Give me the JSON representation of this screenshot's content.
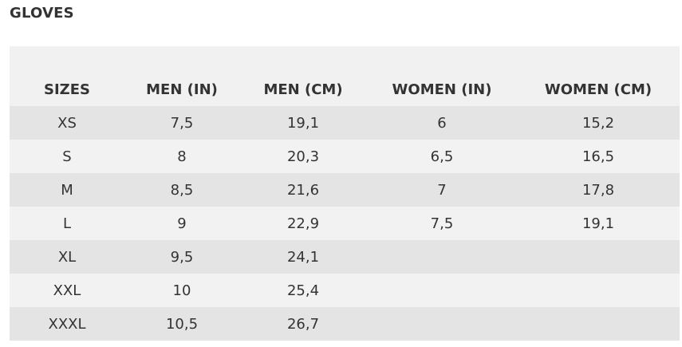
{
  "header": {
    "title": "GLOVES"
  },
  "table": {
    "columns": [
      "SIZES",
      "MEN (IN)",
      "MEN (CM)",
      "WOMEN (IN)",
      "WOMEN (CM)"
    ],
    "rows": [
      [
        "XS",
        "7,5",
        "19,1",
        "6",
        "15,2"
      ],
      [
        "S",
        "8",
        "20,3",
        "6,5",
        "16,5"
      ],
      [
        "M",
        "8,5",
        "21,6",
        "7",
        "17,8"
      ],
      [
        "L",
        "9",
        "22,9",
        "7,5",
        "19,1"
      ],
      [
        "XL",
        "9,5",
        "24,1"
      ],
      [
        "XXL",
        "10",
        "25,4"
      ],
      [
        "XXXL",
        "10,5",
        "26,7"
      ]
    ]
  }
}
